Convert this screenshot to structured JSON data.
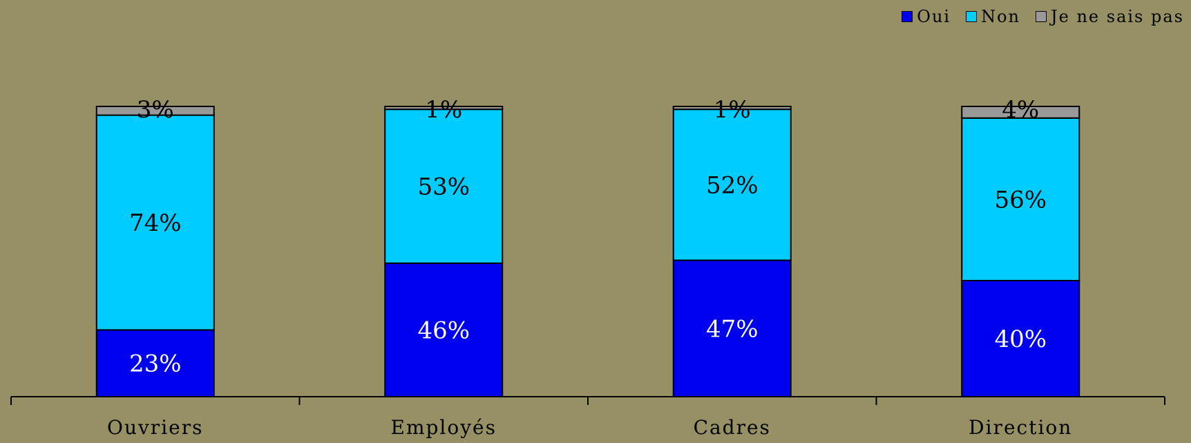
{
  "chart_data": {
    "type": "bar",
    "stacked": true,
    "percent": true,
    "categories": [
      "Ouvriers",
      "Employés",
      "Cadres",
      "Direction"
    ],
    "series": [
      {
        "name": "Oui",
        "values": [
          23,
          46,
          47,
          40
        ],
        "color": "#0000F0",
        "label_color": "#FFFFFF"
      },
      {
        "name": "Non",
        "values": [
          74,
          53,
          52,
          56
        ],
        "color": "#00CCFF",
        "label_color": "#000000"
      },
      {
        "name": "Je ne sais pas",
        "values": [
          3,
          1,
          1,
          4
        ],
        "color": "#999999",
        "label_color": "#000000"
      }
    ],
    "data_labels": [
      [
        "23%",
        "46%",
        "47%",
        "40%"
      ],
      [
        "74%",
        "53%",
        "52%",
        "56%"
      ],
      [
        "3%",
        "1%",
        "1%",
        "4%"
      ]
    ],
    "ylim": [
      0,
      100
    ],
    "grid": false,
    "legend_position": "top-right",
    "title": "",
    "xlabel": "",
    "ylabel": ""
  }
}
